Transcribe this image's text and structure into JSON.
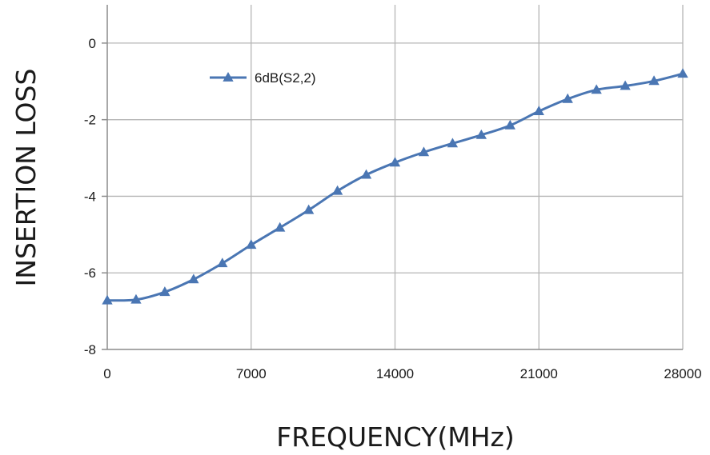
{
  "chart_data": {
    "type": "line",
    "title": "",
    "xlabel": "FREQUENCY(MHz)",
    "ylabel": "INSERTION LOSS",
    "xlim": [
      0,
      28000
    ],
    "ylim": [
      -8,
      1
    ],
    "xticks": [
      0,
      7000,
      14000,
      21000,
      28000
    ],
    "yticks": [
      0,
      -2,
      -4,
      -6,
      -8
    ],
    "grid": true,
    "legend_position": "top-left",
    "series": [
      {
        "name": "6dB(S2,2)",
        "color": "#4a76b3",
        "marker": "triangle",
        "x": [
          0,
          1400,
          2800,
          4200,
          5600,
          7000,
          8400,
          9800,
          11200,
          12600,
          14000,
          15400,
          16800,
          18200,
          19600,
          21000,
          22400,
          23800,
          25200,
          26600,
          28000
        ],
        "y": [
          -6.72,
          -6.7,
          -6.5,
          -6.17,
          -5.75,
          -5.27,
          -4.82,
          -4.36,
          -3.86,
          -3.44,
          -3.12,
          -2.85,
          -2.62,
          -2.4,
          -2.15,
          -1.78,
          -1.46,
          -1.22,
          -1.12,
          -0.99,
          -0.8
        ]
      }
    ]
  }
}
